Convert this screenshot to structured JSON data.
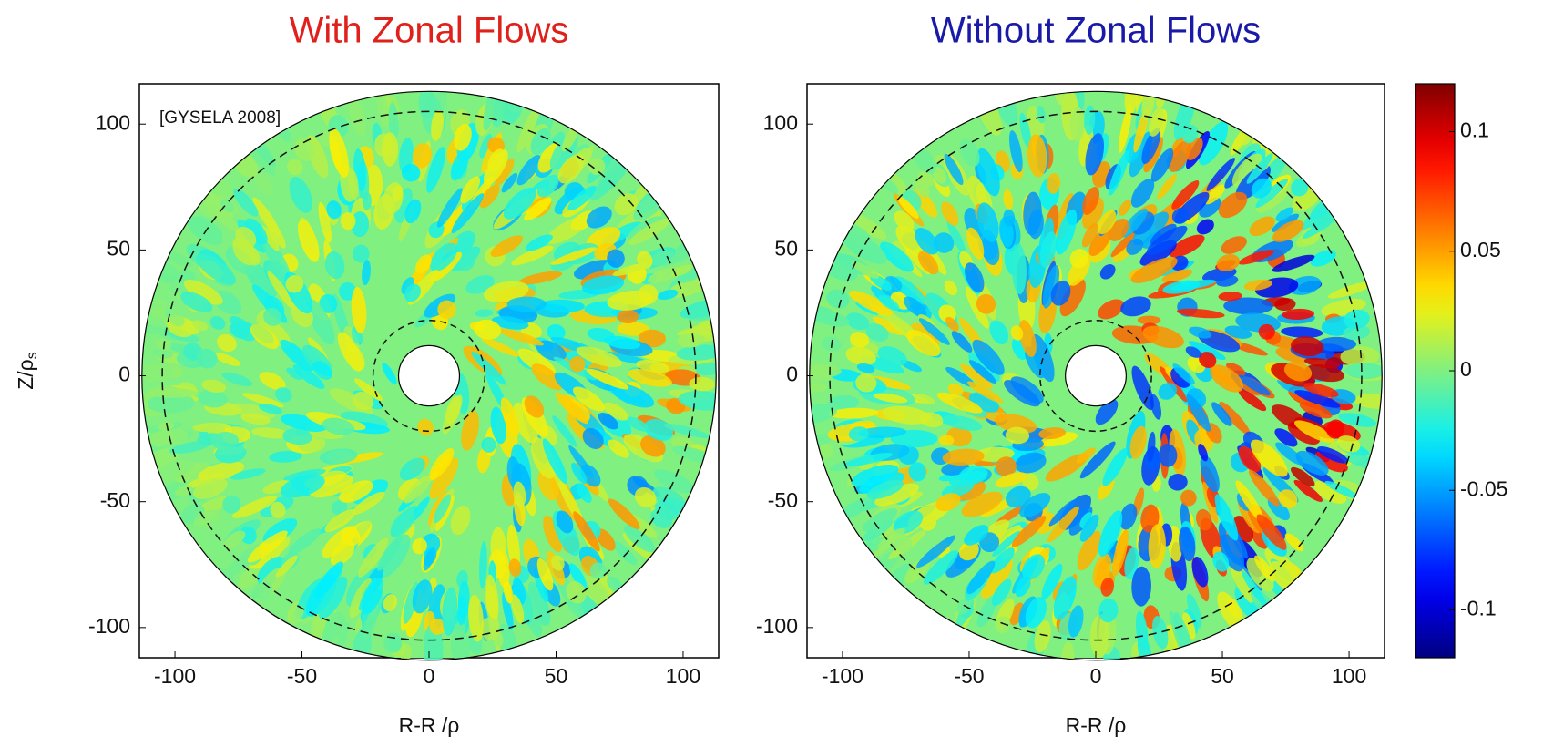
{
  "chart_data": [
    {
      "type": "heatmap",
      "title": "With Zonal Flows",
      "title_color": "#e0201b",
      "xlabel": "R-R /ρ",
      "ylabel": "Z/ρ",
      "ylabel_subscript": "s",
      "annotation": "[GYSELA 2008]",
      "xlim": [
        -114,
        114
      ],
      "ylim": [
        -112,
        116
      ],
      "xticks": [
        -100,
        -50,
        0,
        50,
        100
      ],
      "yticks": [
        -100,
        -50,
        0,
        50,
        100
      ],
      "intensity": 0.55
    },
    {
      "type": "heatmap",
      "title": "Without Zonal Flows",
      "title_color": "#1a1aa8",
      "xlabel": "R-R /ρ",
      "xlim": [
        -114,
        114
      ],
      "ylim": [
        -112,
        116
      ],
      "xticks": [
        -100,
        -50,
        0,
        50,
        100
      ],
      "yticks": [
        -100,
        -50,
        0,
        50,
        100
      ],
      "intensity": 1.0,
      "colorbar": {
        "lim": [
          -0.12,
          0.12
        ],
        "ticks": [
          -0.1,
          -0.05,
          0,
          0.05,
          0.1
        ]
      }
    }
  ]
}
